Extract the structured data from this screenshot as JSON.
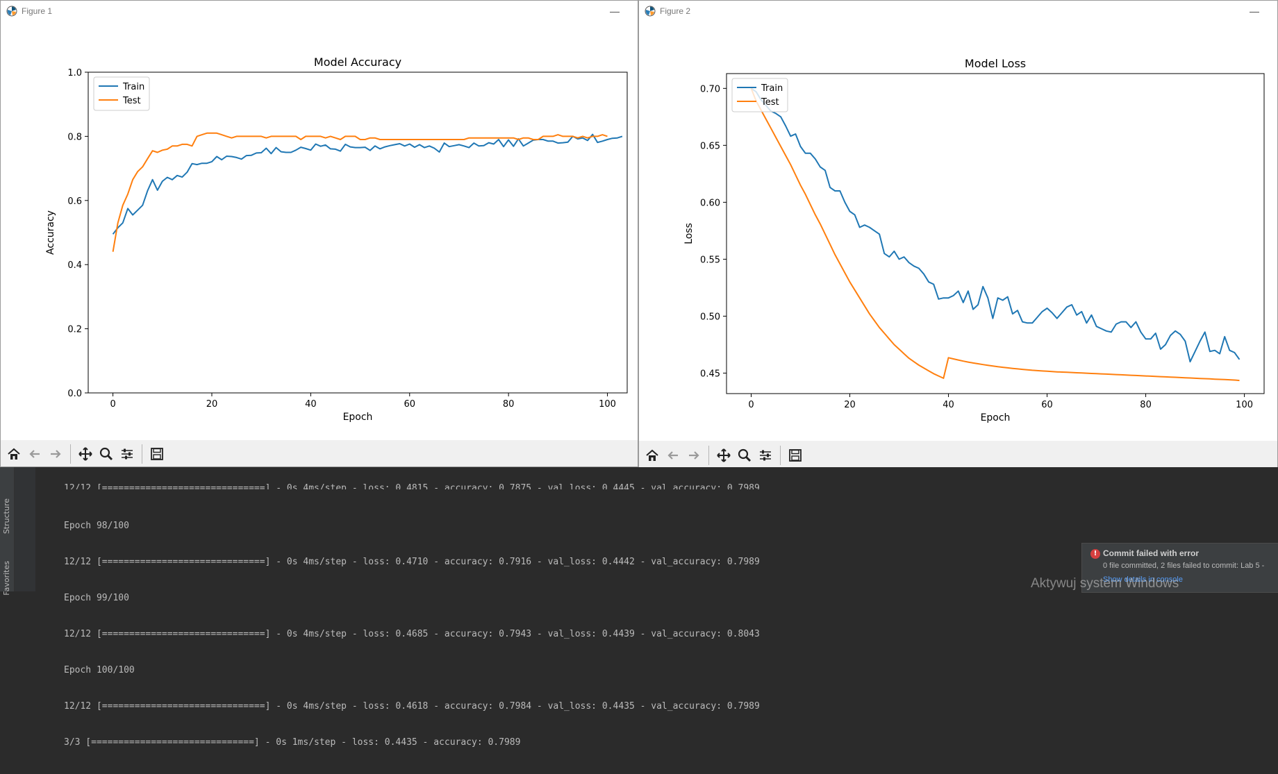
{
  "figure1": {
    "window_title": "Figure 1",
    "minimize_label": "—"
  },
  "figure2": {
    "window_title": "Figure 2",
    "minimize_label": "—"
  },
  "toolbar": {
    "buttons": [
      "home-icon",
      "back-arrow-icon",
      "forward-arrow-icon",
      "pan-icon",
      "zoom-icon",
      "configure-subplots-icon",
      "save-icon"
    ]
  },
  "colors": {
    "train": "#1f77b4",
    "test": "#ff7f0e",
    "console_bg": "#2b2b2b",
    "error": "#d64040",
    "link": "#589df6"
  },
  "chart_data": [
    {
      "type": "line",
      "title": "Model Accuracy",
      "xlabel": "Epoch",
      "ylabel": "Accuracy",
      "xlim": [
        -5,
        104
      ],
      "ylim": [
        0.0,
        1.0
      ],
      "xticks": [
        0,
        20,
        40,
        60,
        80,
        100
      ],
      "yticks": [
        0.0,
        0.2,
        0.4,
        0.6,
        0.8,
        1.0
      ],
      "ytick_labels": [
        "0.0",
        "0.2",
        "0.4",
        "0.6",
        "0.8",
        "1.0"
      ],
      "grid": false,
      "legend": "upper left",
      "series": [
        {
          "name": "Train",
          "x_start": 0,
          "values": [
            0.495,
            0.515,
            0.53,
            0.575,
            0.555,
            0.57,
            0.585,
            0.63,
            0.665,
            0.632,
            0.66,
            0.672,
            0.665,
            0.678,
            0.673,
            0.688,
            0.715,
            0.712,
            0.716,
            0.716,
            0.721,
            0.737,
            0.727,
            0.738,
            0.737,
            0.734,
            0.729,
            0.74,
            0.741,
            0.748,
            0.749,
            0.763,
            0.746,
            0.765,
            0.752,
            0.75,
            0.75,
            0.757,
            0.766,
            0.762,
            0.757,
            0.776,
            0.769,
            0.773,
            0.761,
            0.76,
            0.754,
            0.775,
            0.767,
            0.765,
            0.765,
            0.766,
            0.756,
            0.77,
            0.761,
            0.767,
            0.771,
            0.774,
            0.777,
            0.77,
            0.776,
            0.766,
            0.774,
            0.765,
            0.77,
            0.763,
            0.751,
            0.779,
            0.768,
            0.771,
            0.774,
            0.77,
            0.765,
            0.779,
            0.77,
            0.771,
            0.78,
            0.776,
            0.79,
            0.768,
            0.789,
            0.769,
            0.792,
            0.77,
            0.779,
            0.788,
            0.79,
            0.79,
            0.785,
            0.785,
            0.779,
            0.78,
            0.782,
            0.8,
            0.792,
            0.795,
            0.787,
            0.806,
            0.781,
            0.785,
            0.79,
            0.794,
            0.795,
            0.8
          ]
        },
        {
          "name": "Test",
          "x_start": 0,
          "values": [
            0.44,
            0.53,
            0.585,
            0.62,
            0.665,
            0.69,
            0.705,
            0.73,
            0.755,
            0.75,
            0.757,
            0.76,
            0.77,
            0.77,
            0.775,
            0.775,
            0.77,
            0.8,
            0.805,
            0.81,
            0.81,
            0.81,
            0.805,
            0.8,
            0.795,
            0.8,
            0.8,
            0.8,
            0.8,
            0.8,
            0.8,
            0.795,
            0.8,
            0.8,
            0.8,
            0.8,
            0.8,
            0.8,
            0.79,
            0.8,
            0.8,
            0.8,
            0.8,
            0.795,
            0.8,
            0.795,
            0.79,
            0.8,
            0.8,
            0.8,
            0.79,
            0.79,
            0.795,
            0.795,
            0.79,
            0.79,
            0.79,
            0.79,
            0.79,
            0.79,
            0.79,
            0.79,
            0.79,
            0.79,
            0.79,
            0.79,
            0.79,
            0.79,
            0.79,
            0.79,
            0.79,
            0.79,
            0.795,
            0.795,
            0.795,
            0.795,
            0.795,
            0.795,
            0.795,
            0.795,
            0.795,
            0.795,
            0.79,
            0.795,
            0.795,
            0.79,
            0.79,
            0.8,
            0.8,
            0.8,
            0.805,
            0.8,
            0.8,
            0.8,
            0.795,
            0.8,
            0.795,
            0.8,
            0.8,
            0.805,
            0.8
          ]
        }
      ]
    },
    {
      "type": "line",
      "title": "Model Loss",
      "xlabel": "Epoch",
      "ylabel": "Loss",
      "xlim": [
        -5,
        104
      ],
      "ylim": [
        0.432,
        0.713
      ],
      "xticks": [
        0,
        20,
        40,
        60,
        80,
        100
      ],
      "yticks": [
        0.45,
        0.5,
        0.55,
        0.6,
        0.65,
        0.7
      ],
      "ytick_labels": [
        "0.45",
        "0.50",
        "0.55",
        "0.60",
        "0.65",
        "0.70"
      ],
      "grid": false,
      "legend": "upper left",
      "series": [
        {
          "name": "Train",
          "x_start": 0,
          "values": [
            0.7,
            0.697,
            0.69,
            0.685,
            0.68,
            0.678,
            0.675,
            0.667,
            0.658,
            0.66,
            0.649,
            0.643,
            0.643,
            0.638,
            0.631,
            0.628,
            0.613,
            0.61,
            0.61,
            0.6,
            0.592,
            0.589,
            0.578,
            0.58,
            0.578,
            0.575,
            0.572,
            0.555,
            0.552,
            0.557,
            0.55,
            0.552,
            0.547,
            0.544,
            0.542,
            0.537,
            0.53,
            0.528,
            0.515,
            0.516,
            0.516,
            0.518,
            0.522,
            0.512,
            0.522,
            0.506,
            0.51,
            0.526,
            0.516,
            0.498,
            0.516,
            0.514,
            0.517,
            0.502,
            0.505,
            0.495,
            0.494,
            0.494,
            0.499,
            0.504,
            0.507,
            0.503,
            0.498,
            0.503,
            0.508,
            0.51,
            0.501,
            0.504,
            0.494,
            0.501,
            0.491,
            0.489,
            0.487,
            0.486,
            0.493,
            0.495,
            0.495,
            0.49,
            0.495,
            0.486,
            0.48,
            0.48,
            0.485,
            0.471,
            0.475,
            0.483,
            0.487,
            0.484,
            0.478,
            0.46,
            0.469,
            0.478,
            0.486,
            0.469,
            0.47,
            0.467,
            0.482,
            0.47,
            0.468,
            0.462
          ]
        },
        {
          "name": "Test",
          "x_start": 0,
          "values": [
            0.7,
            0.689,
            0.681,
            0.673,
            0.665,
            0.657,
            0.649,
            0.641,
            0.633,
            0.624,
            0.615,
            0.607,
            0.598,
            0.589,
            0.581,
            0.572,
            0.563,
            0.554,
            0.546,
            0.538,
            0.53,
            0.523,
            0.516,
            0.509,
            0.502,
            0.496,
            0.49,
            0.485,
            0.48,
            0.475,
            0.471,
            0.467,
            0.463,
            0.46,
            0.457,
            0.4545,
            0.452,
            0.4495,
            0.4475,
            0.4455,
            0.4635,
            0.4625,
            0.4615,
            0.4605,
            0.4597,
            0.4589,
            0.4582,
            0.4575,
            0.4568,
            0.4562,
            0.4556,
            0.4551,
            0.4546,
            0.4541,
            0.4537,
            0.4533,
            0.4529,
            0.4525,
            0.4522,
            0.4519,
            0.4516,
            0.4513,
            0.4511,
            0.4509,
            0.4507,
            0.4505,
            0.4503,
            0.4501,
            0.4499,
            0.4497,
            0.4495,
            0.4493,
            0.4491,
            0.4489,
            0.4487,
            0.4485,
            0.4483,
            0.4481,
            0.4479,
            0.4477,
            0.4475,
            0.4473,
            0.4471,
            0.4469,
            0.4467,
            0.4465,
            0.4463,
            0.4461,
            0.4459,
            0.4457,
            0.4455,
            0.4453,
            0.4451,
            0.4449,
            0.4447,
            0.4445,
            0.4443,
            0.4441,
            0.4439,
            0.4435
          ]
        }
      ]
    }
  ],
  "console": {
    "lines": [
      "12/12 [==============================] - 0s 4ms/step - loss: 0.4815 - accuracy: 0.7875 - val_loss: 0.4445 - val_accuracy: 0.7989",
      "Epoch 98/100",
      "12/12 [==============================] - 0s 4ms/step - loss: 0.4710 - accuracy: 0.7916 - val_loss: 0.4442 - val_accuracy: 0.7989",
      "Epoch 99/100",
      "12/12 [==============================] - 0s 4ms/step - loss: 0.4685 - accuracy: 0.7943 - val_loss: 0.4439 - val_accuracy: 0.8043",
      "Epoch 100/100",
      "12/12 [==============================] - 0s 4ms/step - loss: 0.4618 - accuracy: 0.7984 - val_loss: 0.4435 - val_accuracy: 0.7989",
      "3/3 [==============================] - 0s 1ms/step - loss: 0.4435 - accuracy: 0.7989"
    ],
    "side_labels": [
      "Structure",
      "Favorites"
    ]
  },
  "notification": {
    "title": "Commit failed with error",
    "body": "0 file committed, 2 files failed to commit: Lab 5 -",
    "link": "Show details in console"
  },
  "watermark": "Aktywuj system Windows"
}
